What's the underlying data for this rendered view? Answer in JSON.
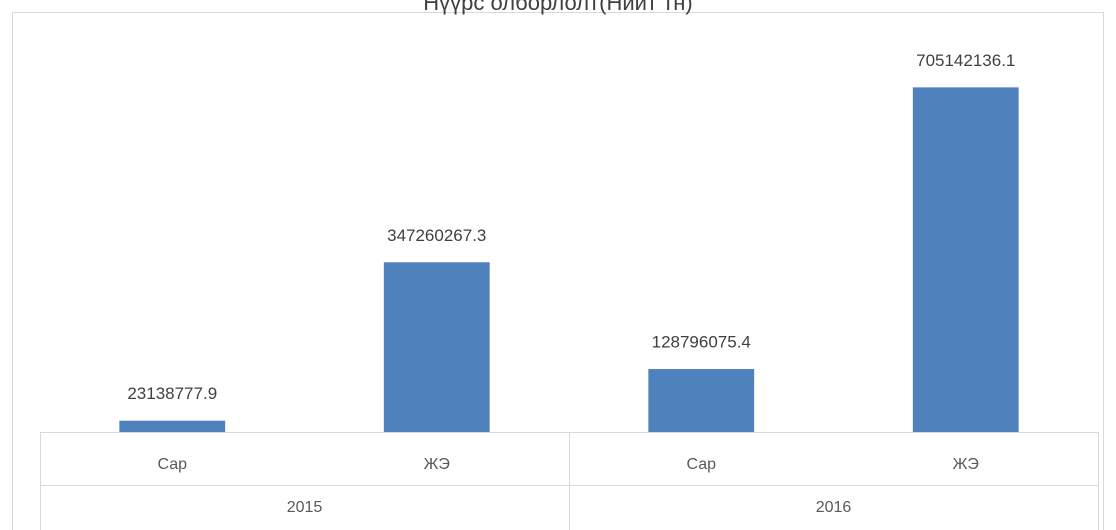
{
  "chart_data": {
    "type": "bar",
    "title": "Нүүрс олборлолт(Нийт тн)",
    "color": "#4f81bd",
    "ylim": [
      0,
      800000000
    ],
    "groups": [
      {
        "name": "2015",
        "categories": [
          "Сар",
          "ЖЭ"
        ],
        "values": [
          23138777.9,
          347260267.3
        ]
      },
      {
        "name": "2016",
        "categories": [
          "Сар",
          "ЖЭ"
        ],
        "values": [
          128796075.4,
          705142136.1
        ]
      }
    ]
  }
}
